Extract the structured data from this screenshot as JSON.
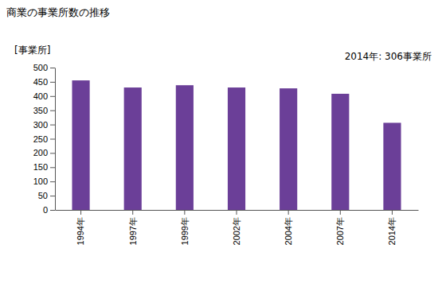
{
  "chart_data": {
    "type": "bar",
    "title": "商業の事業所数の推移",
    "y_label": "[事業所]",
    "annotation": "2014年: 306事業所",
    "categories": [
      "1994年",
      "1997年",
      "1999年",
      "2002年",
      "2004年",
      "2007年",
      "2014年"
    ],
    "values": [
      455,
      430,
      438,
      430,
      427,
      408,
      306
    ],
    "color": "#6b3f98",
    "ylim": [
      0,
      500
    ],
    "yticks": [
      0,
      50,
      100,
      150,
      200,
      250,
      300,
      350,
      400,
      450,
      500
    ],
    "grid": false
  }
}
